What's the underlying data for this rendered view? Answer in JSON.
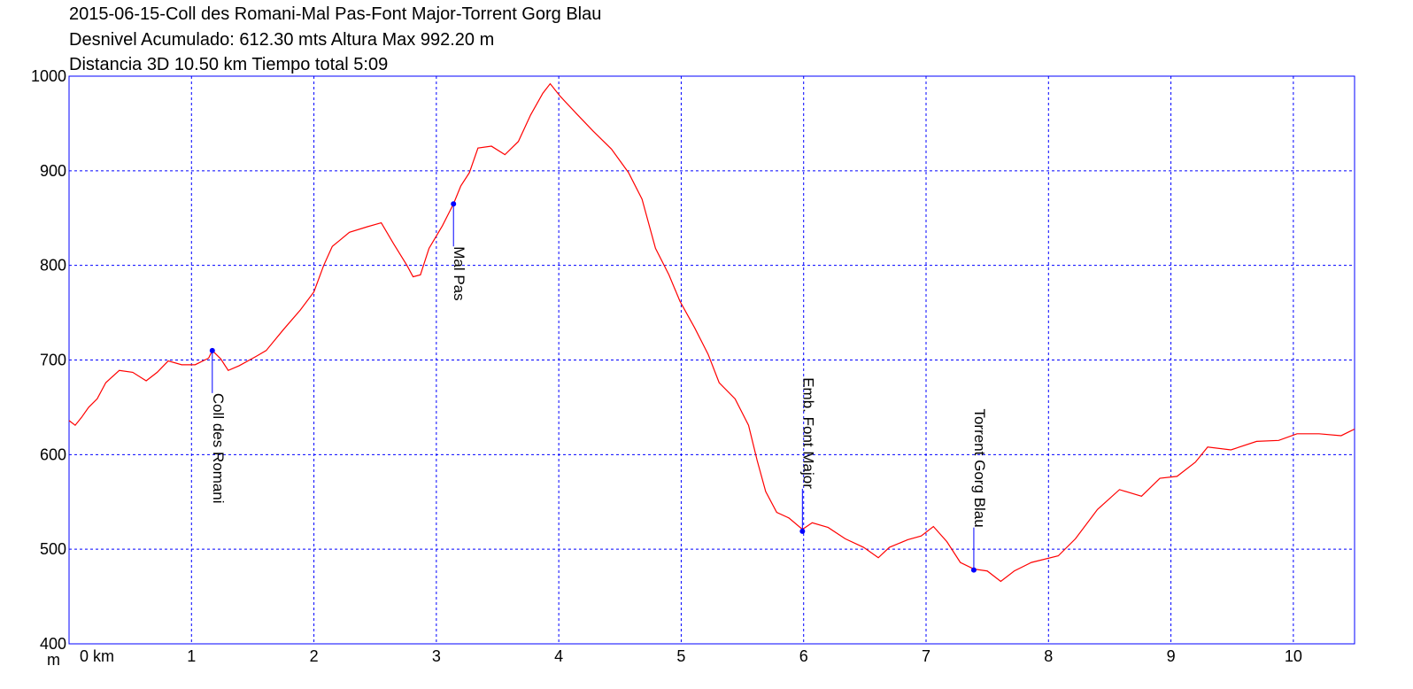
{
  "chart_data": {
    "type": "line",
    "title": [
      "2015-06-15-Coll des Romani-Mal Pas-Font Major-Torrent Gorg Blau",
      "Desnivel Acumulado: 612.30 mts  Altura Max 992.20 m",
      "Distancia 3D 10.50 km  Tiempo total 5:09"
    ],
    "y_label": "m",
    "color": "#ff0000",
    "grid": true,
    "grid_color": "#0000ff",
    "xlim": [
      0,
      10.5
    ],
    "ylim": [
      400,
      1000
    ],
    "xticks": [
      {
        "value": 0,
        "label": "0 km"
      },
      1,
      2,
      3,
      4,
      5,
      6,
      7,
      8,
      9,
      10
    ],
    "yticks": [
      400,
      500,
      600,
      700,
      800,
      900,
      1000
    ],
    "x": [
      0,
      0.05,
      0.1,
      0.16,
      0.23,
      0.3,
      0.41,
      0.52,
      0.63,
      0.72,
      0.81,
      0.92,
      1.03,
      1.14,
      1.17,
      1.24,
      1.3,
      1.39,
      1.53,
      1.61,
      1.75,
      1.89,
      2.0,
      2.08,
      2.15,
      2.29,
      2.44,
      2.55,
      2.65,
      2.76,
      2.81,
      2.87,
      2.94,
      3.05,
      3.14,
      3.2,
      3.27,
      3.34,
      3.45,
      3.56,
      3.67,
      3.77,
      3.87,
      3.93,
      4.01,
      4.14,
      4.28,
      4.43,
      4.57,
      4.68,
      4.79,
      4.9,
      4.99,
      5.11,
      5.22,
      5.31,
      5.44,
      5.55,
      5.62,
      5.69,
      5.78,
      5.88,
      5.99,
      6.07,
      6.2,
      6.34,
      6.49,
      6.61,
      6.7,
      6.85,
      6.96,
      7.06,
      7.17,
      7.28,
      7.39,
      7.5,
      7.61,
      7.72,
      7.86,
      8.08,
      8.22,
      8.4,
      8.58,
      8.76,
      8.91,
      9.05,
      9.2,
      9.3,
      9.49,
      9.7,
      9.88,
      10.03,
      10.21,
      10.39,
      10.5
    ],
    "values": [
      636,
      631,
      639,
      650,
      659,
      676,
      689,
      687,
      678,
      687,
      699,
      695,
      695,
      702,
      710,
      701,
      689,
      694,
      704,
      710,
      732,
      753,
      772,
      800,
      820,
      835,
      841,
      845,
      823,
      800,
      788,
      790,
      818,
      842,
      865,
      884,
      898,
      924,
      926,
      917,
      931,
      959,
      982,
      992,
      979,
      961,
      942,
      923,
      898,
      870,
      818,
      790,
      762,
      734,
      706,
      676,
      659,
      631,
      594,
      561,
      539,
      533,
      521,
      528,
      523,
      511,
      502,
      491,
      502,
      510,
      514,
      524,
      508,
      486,
      479,
      477,
      466,
      477,
      486,
      493,
      511,
      542,
      563,
      556,
      575,
      577,
      592,
      608,
      605,
      614,
      615,
      622,
      622,
      620,
      627
    ],
    "annotations": [
      {
        "label": "Coll des Romani",
        "x": 1.17,
        "y": 710
      },
      {
        "label": "Mal Pas",
        "x": 3.14,
        "y": 865
      },
      {
        "label": "Emb. Font Major",
        "x": 5.99,
        "y": 519
      },
      {
        "label": "Torrent Gorg Blau",
        "x": 7.39,
        "y": 478
      }
    ],
    "annotation_color": "#0000ff"
  }
}
